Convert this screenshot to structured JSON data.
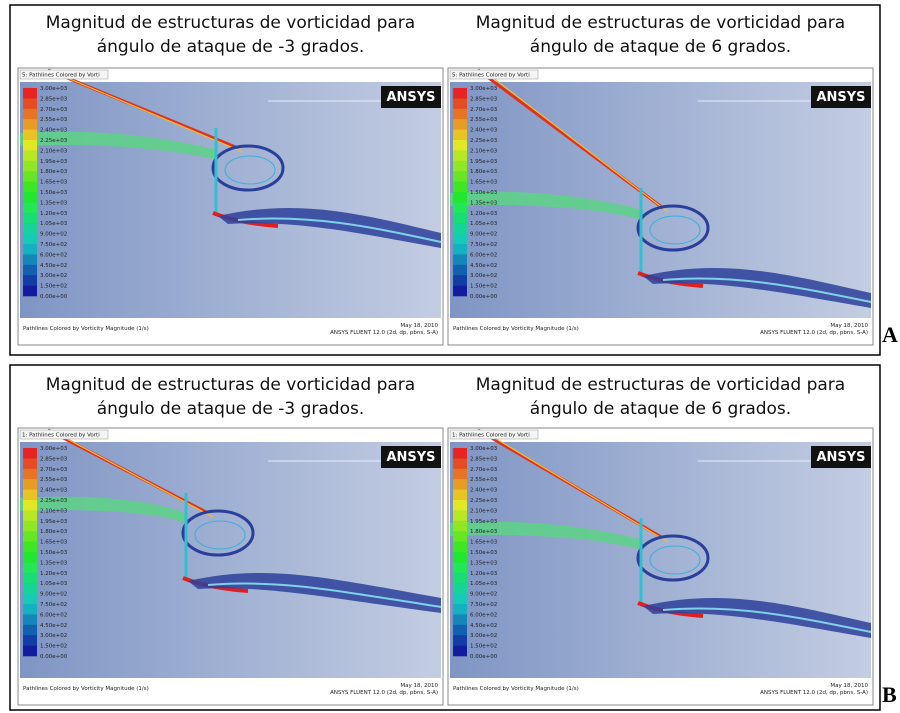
{
  "groups": [
    {
      "label": "A",
      "panels": [
        {
          "title": [
            "Magnitud de estructuras de vorticidad para",
            "ángulo de ataque de -3 grados."
          ],
          "dropdown": "5: Pathlines Colored by Vorti"
        },
        {
          "title": [
            "Magnitud de estructuras de vorticidad para",
            "ángulo de ataque de 6 grados."
          ],
          "dropdown": "5: Pathlines Colored by Vorti"
        }
      ]
    },
    {
      "label": "B",
      "panels": [
        {
          "title": [
            "Magnitud de estructuras de vorticidad para",
            "ángulo de ataque de -3 grados."
          ],
          "dropdown": "1: Pathlines Colored by Vorti"
        },
        {
          "title": [
            "Magnitud de estructuras de vorticidad para",
            "ángulo de ataque de 6 grados."
          ],
          "dropdown": "1: Pathlines Colored by Vorti"
        }
      ]
    }
  ],
  "logo": "ANSYS",
  "colorbar_labels": [
    "3.00e+03",
    "2.85e+03",
    "2.70e+03",
    "2.55e+03",
    "2.40e+03",
    "2.25e+03",
    "2.10e+03",
    "1.95e+03",
    "1.80e+03",
    "1.65e+03",
    "1.50e+03",
    "1.35e+03",
    "1.20e+03",
    "1.05e+03",
    "9.00e+02",
    "7.50e+02",
    "6.00e+02",
    "4.50e+02",
    "3.00e+02",
    "1.50e+02",
    "0.00e+00"
  ],
  "footer": {
    "caption": "Pathlines Colored by Vorticity Magnitude (1/s)",
    "date": "May 18, 2010",
    "version": "ANSYS FLUENT 12.0 (2d, dp, pbns, S-A)"
  }
}
